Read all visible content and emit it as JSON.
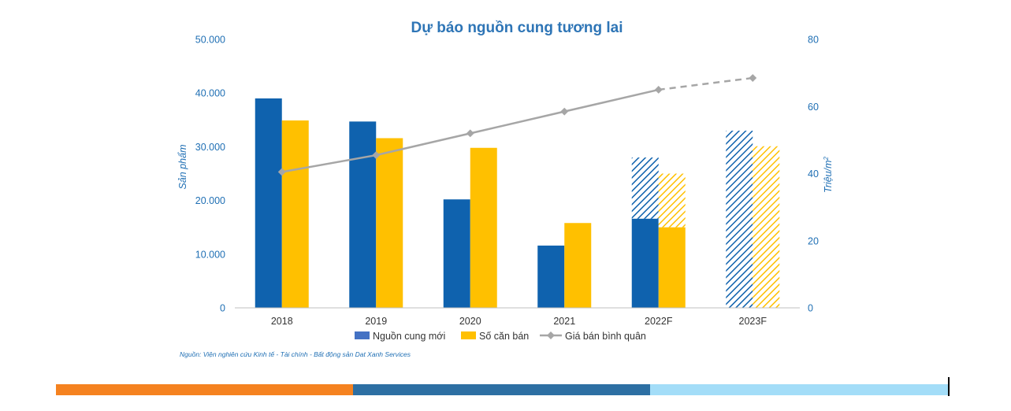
{
  "chart_data": {
    "type": "bar+line",
    "title": "Dự báo nguồn cung tương lai",
    "ylabel_left": "Sản phẩm",
    "ylabel_right": "Triệu/m",
    "ylabel_right_sup": "2",
    "ylim_left": [
      0,
      50000
    ],
    "ylim_right": [
      0,
      80
    ],
    "yticks_left": [
      "0",
      "10.000",
      "20.000",
      "30.000",
      "40.000",
      "50.000"
    ],
    "yticks_right": [
      "0",
      "20",
      "40",
      "60",
      "80"
    ],
    "categories": [
      "2018",
      "2019",
      "2020",
      "2021",
      "2022F",
      "2023F"
    ],
    "series": [
      {
        "name": "Nguồn cung mới",
        "kind": "bar",
        "color": "#0F62AE",
        "values": [
          39000,
          34700,
          20200,
          11600,
          28000,
          33000
        ],
        "actual_portion": [
          39000,
          34700,
          20200,
          11600,
          16600,
          0
        ]
      },
      {
        "name": "Số căn bán",
        "kind": "bar",
        "color": "#FFC000",
        "values": [
          34900,
          31600,
          29800,
          15800,
          25000,
          30100
        ],
        "actual_portion": [
          34900,
          31600,
          29800,
          15800,
          15000,
          0
        ]
      },
      {
        "name": "Giá bán bình quân",
        "kind": "line",
        "axis": "right",
        "color": "#A6A6A6",
        "values": [
          40.5,
          45.5,
          52,
          58.5,
          65,
          68.5
        ],
        "dashed_from_index": 4
      }
    ],
    "grid": false,
    "legend_position": "bottom"
  },
  "source": "Nguồn: Viện nghiên cứu Kinh tế - Tài chính - Bất động sản Dat Xanh Services",
  "footer_colors": [
    "#F58220",
    "#2D6FA3",
    "#A3DDF8"
  ]
}
